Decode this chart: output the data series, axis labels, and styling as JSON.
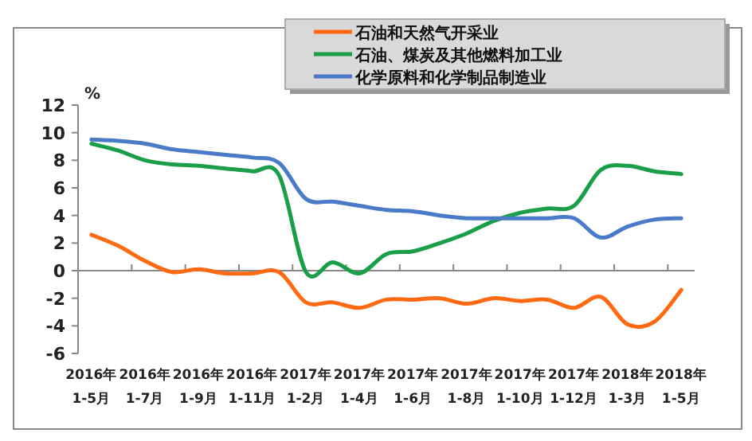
{
  "chart_data": {
    "type": "line",
    "ylabel": "%",
    "categories": [
      "2016年 1-5月",
      null,
      "2016年 1-7月",
      null,
      "2016年 1-9月",
      null,
      "2016年 1-11月",
      null,
      "2017年 1-2月",
      null,
      "2017年 1-4月",
      null,
      "2017年 1-6月",
      null,
      "2017年 1-8月",
      null,
      "2017年 1-10月",
      null,
      "2017年 1-12月",
      null,
      "2018年 1-3月",
      null,
      "2018年 1-5月"
    ],
    "series": [
      {
        "name": "石油和天然气开采业",
        "color": "#ff6a13",
        "values": [
          2.6,
          1.8,
          0.7,
          -0.1,
          0.1,
          -0.2,
          -0.2,
          -0.1,
          -2.3,
          -2.3,
          -2.7,
          -2.1,
          -2.1,
          -2.0,
          -2.4,
          -2.0,
          -2.2,
          -2.1,
          -2.7,
          -1.9,
          -3.9,
          -3.7,
          -1.4
        ]
      },
      {
        "name": "石油、煤炭及其他燃料加工业",
        "color": "#1a9f48",
        "values": [
          9.2,
          8.7,
          8.0,
          7.7,
          7.6,
          7.4,
          7.2,
          6.9,
          -0.1,
          0.6,
          -0.2,
          1.2,
          1.4,
          2.0,
          2.7,
          3.6,
          4.2,
          4.5,
          4.7,
          7.3,
          7.6,
          7.2,
          7.0
        ]
      },
      {
        "name": "化学原料和化学制品制造业",
        "color": "#4a7bc8",
        "values": [
          9.5,
          9.4,
          9.2,
          8.8,
          8.6,
          8.4,
          8.2,
          7.8,
          5.2,
          5.0,
          4.7,
          4.4,
          4.3,
          4.0,
          3.8,
          3.8,
          3.8,
          3.8,
          3.8,
          2.4,
          3.2,
          3.7,
          3.8
        ]
      }
    ],
    "ylim": [
      -6,
      12
    ],
    "yticks": [
      -6,
      -4,
      -2,
      0,
      2,
      4,
      6,
      8,
      10,
      12
    ],
    "legend": "top right",
    "marker": "none",
    "line_style": "solid"
  }
}
